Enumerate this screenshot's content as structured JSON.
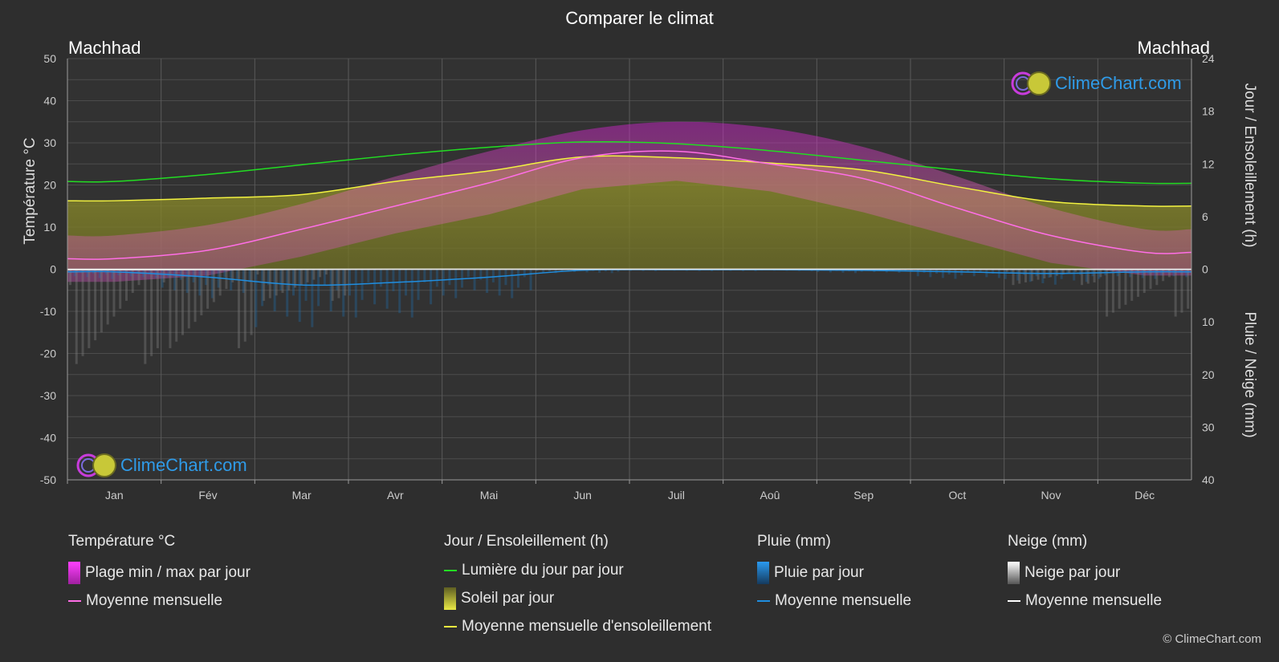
{
  "title": "Comparer le climat",
  "location_left": "Machhad",
  "location_right": "Machhad",
  "logo_text": "ClimeChart.com",
  "copyright": "© ClimeChart.com",
  "legend": {
    "temperature": {
      "header": "Température °C",
      "range_label": "Plage min / max par jour",
      "mean_label": "Moyenne mensuelle",
      "range_color": "#e020e0",
      "mean_color": "#ff6ee6"
    },
    "sun": {
      "header": "Jour / Ensoleillement (h)",
      "daylight_label": "Lumière du jour par jour",
      "sun_label": "Soleil par jour",
      "sun_mean_label": "Moyenne mensuelle d'ensoleillement",
      "daylight_color": "#22dd22",
      "sun_color": "#d8d835",
      "sun_mean_color": "#f2f240"
    },
    "rain": {
      "header": "Pluie (mm)",
      "daily_label": "Pluie par jour",
      "mean_label": "Moyenne mensuelle",
      "color": "#1f8ee0"
    },
    "snow": {
      "header": "Neige (mm)",
      "daily_label": "Neige par jour",
      "mean_label": "Moyenne mensuelle",
      "color": "#ffffff"
    }
  },
  "chart_data": {
    "type": "area",
    "months": [
      "Jan",
      "Fév",
      "Mar",
      "Avr",
      "Mai",
      "Jun",
      "Juil",
      "Aoû",
      "Sep",
      "Oct",
      "Nov",
      "Déc"
    ],
    "left_axis": {
      "label": "Température °C",
      "ticks": [
        50,
        40,
        30,
        20,
        10,
        0,
        -10,
        -20,
        -30,
        -40,
        -50
      ],
      "range": [
        -50,
        50
      ]
    },
    "right_axis_top": {
      "label": "Jour / Ensoleillement (h)",
      "ticks": [
        24,
        18,
        12,
        6,
        0
      ],
      "range": [
        0,
        24
      ]
    },
    "right_axis_bottom": {
      "label": "Pluie / Neige (mm)",
      "ticks": [
        10,
        20,
        30,
        40
      ],
      "range": [
        0,
        40
      ]
    },
    "series": {
      "temp_mean": [
        2.5,
        4.5,
        9.5,
        15.0,
        20.5,
        26.5,
        28.0,
        25.0,
        21.5,
        14.5,
        8.0,
        4.0
      ],
      "temp_max": [
        8,
        10.5,
        15.5,
        22,
        28,
        33,
        35,
        33.5,
        29,
        22,
        14.5,
        9.5
      ],
      "temp_min": [
        -3,
        -1.5,
        3,
        8.5,
        13,
        19,
        21,
        18.5,
        13.5,
        7.5,
        1.5,
        -1.5
      ],
      "daylight_hours": [
        10.0,
        10.8,
        11.9,
        13.0,
        13.9,
        14.5,
        14.3,
        13.5,
        12.4,
        11.3,
        10.3,
        9.8
      ],
      "sunshine_hours": [
        7.8,
        8.1,
        8.5,
        10.0,
        11.2,
        12.8,
        12.7,
        12.1,
        11.3,
        9.4,
        7.7,
        7.2
      ],
      "rain_mean_mm": [
        0.5,
        1.5,
        3.0,
        2.5,
        1.5,
        0.2,
        0.1,
        0.1,
        0.2,
        0.5,
        0.8,
        0.5
      ],
      "snow_mean_mm": [
        0.6,
        0.5,
        0.2,
        0,
        0,
        0,
        0,
        0,
        0,
        0,
        0.1,
        0.3
      ]
    },
    "grid": true
  }
}
